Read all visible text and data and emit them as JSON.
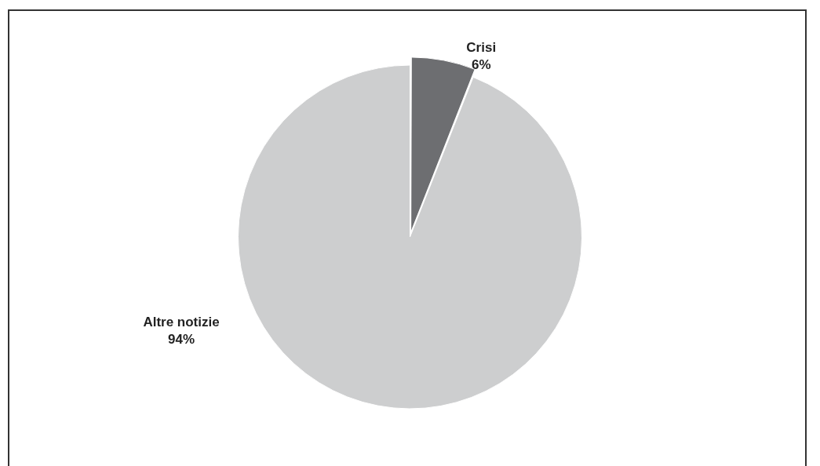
{
  "chart_data": {
    "type": "pie",
    "categories": [
      "Crisi",
      "Altre notizie"
    ],
    "values": [
      6,
      94
    ],
    "colors": [
      "#6d6e71",
      "#cdcecf"
    ],
    "value_labels": [
      "6%",
      "94%"
    ],
    "legend": false
  }
}
